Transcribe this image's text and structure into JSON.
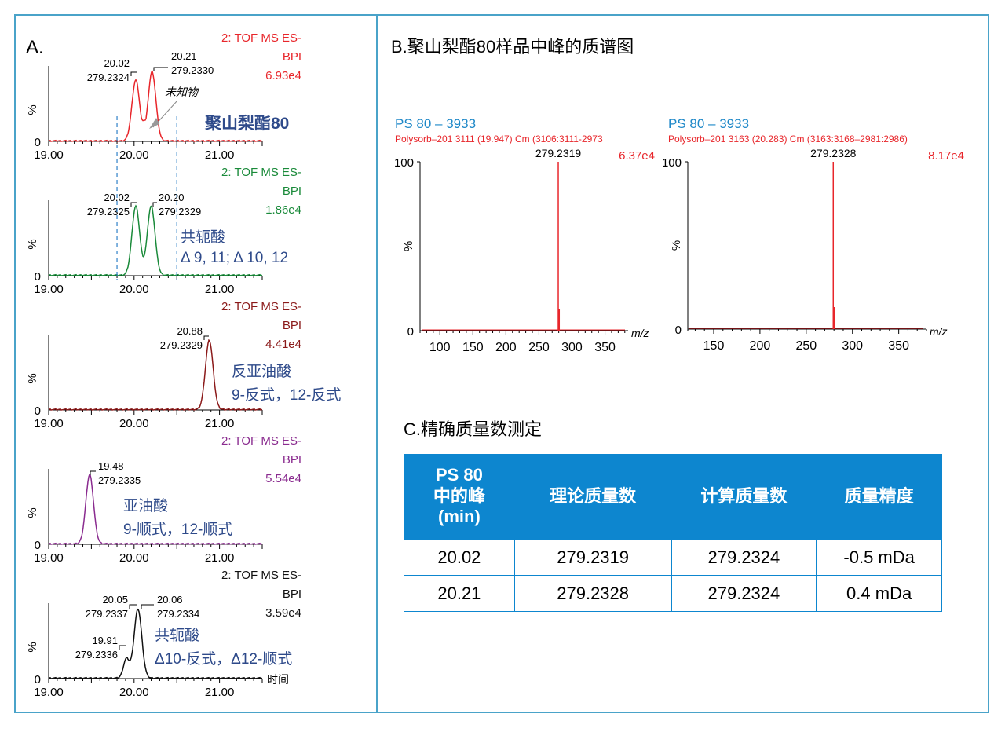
{
  "panel_a": {
    "label": "A.",
    "x_ticks": [
      "19.00",
      "20.00",
      "21.00"
    ],
    "y_label": "%",
    "y_zero": "0",
    "x_axis_title": "时间",
    "annotations": {
      "unknown": "未知物",
      "polysorbate": "聚山梨酯80"
    }
  },
  "panel_b": {
    "title": "B.聚山梨酯80样品中峰的质谱图"
  },
  "panel_c": {
    "title": "C.精确质量数测定",
    "headers": [
      "PS 80\n中的峰\n(min)",
      "理论质量数",
      "计算质量数",
      "质量精度"
    ],
    "rows": [
      [
        "20.02",
        "279.2319",
        "279.2324",
        "-0.5 mDa"
      ],
      [
        "20.21",
        "279.2328",
        "279.2324",
        "0.4 mDa"
      ]
    ]
  },
  "colors": {
    "frame": "#4aa3c9",
    "table_header": "#0d86cf",
    "annotation_blue": "#2e4a8a",
    "trace_red": "#e8262b",
    "trace_green": "#1a8a3a",
    "trace_darkred": "#8b1a1a",
    "trace_purple": "#8a2b8f",
    "trace_black": "#111111",
    "guide_blue": "#2f80c8"
  },
  "chart_data": [
    {
      "type": "line",
      "panel": "A1",
      "xlim": [
        19.0,
        21.5
      ],
      "ylim": [
        0,
        100
      ],
      "color": "#e8262b",
      "header": [
        "2: TOF MS ES-",
        "BPI",
        "6.93e4"
      ],
      "peaks": [
        {
          "rt": 20.02,
          "label1": "20.02",
          "label2": "279.2324",
          "height": 88
        },
        {
          "rt": 20.21,
          "label1": "20.21",
          "label2": "279.2330",
          "height": 100
        }
      ],
      "valley": {
        "rt": 20.12,
        "height": 30
      },
      "notes": [
        "未知物",
        "聚山梨酯80"
      ],
      "guides": [
        19.8,
        20.5
      ]
    },
    {
      "type": "line",
      "panel": "A2",
      "xlim": [
        19.0,
        21.5
      ],
      "ylim": [
        0,
        100
      ],
      "color": "#1a8a3a",
      "header": [
        "2: TOF MS ES-",
        "BPI",
        "1.86e4"
      ],
      "peaks": [
        {
          "rt": 20.02,
          "label1": "20.02",
          "label2": "279.2325",
          "height": 100
        },
        {
          "rt": 20.2,
          "label1": "20.20",
          "label2": "279.2329",
          "height": 100
        }
      ],
      "valley": {
        "rt": 20.11,
        "height": 15
      },
      "notes": [
        "共轭酸",
        "Δ 9, 11; Δ 10, 12"
      ],
      "guides": [
        19.8,
        20.5
      ]
    },
    {
      "type": "line",
      "panel": "A3",
      "xlim": [
        19.0,
        21.5
      ],
      "ylim": [
        0,
        100
      ],
      "color": "#8b1a1a",
      "header": [
        "2: TOF MS ES-",
        "BPI",
        "4.41e4"
      ],
      "peaks": [
        {
          "rt": 20.88,
          "label1": "20.88",
          "label2": "279.2329",
          "height": 100
        }
      ],
      "notes": [
        "反亚油酸",
        "9-反式，12-反式"
      ]
    },
    {
      "type": "line",
      "panel": "A4",
      "xlim": [
        19.0,
        21.5
      ],
      "ylim": [
        0,
        100
      ],
      "color": "#8a2b8f",
      "header": [
        "2: TOF MS ES-",
        "BPI",
        "5.54e4"
      ],
      "peaks": [
        {
          "rt": 19.48,
          "label1": "19.48",
          "label2": "279.2335",
          "height": 100
        }
      ],
      "notes": [
        "亚油酸",
        "9-顺式，12-顺式"
      ]
    },
    {
      "type": "line",
      "panel": "A5",
      "xlim": [
        19.0,
        21.5
      ],
      "ylim": [
        0,
        100
      ],
      "color": "#111111",
      "header": [
        "2: TOF MS ES-",
        "BPI",
        "3.59e4"
      ],
      "peaks": [
        {
          "rt": 19.91,
          "label1": "19.91",
          "label2": "279.2336",
          "height": 30
        },
        {
          "rt": 20.05,
          "label1": "20.05",
          "label2": "279.2337",
          "height": 100
        },
        {
          "rt": 20.06,
          "label1": "20.06",
          "label2": "279.2334",
          "height": 100
        }
      ],
      "notes": [
        "共轭酸",
        "Δ10-反式，Δ12-顺式"
      ]
    },
    {
      "type": "bar",
      "panel": "B1",
      "title_line": "PS 80 – 3933",
      "subtitle": "Polysorb–201 3111 (19.947) Cm (3106:3111-2973",
      "intensity": "6.37e4",
      "xlim": [
        70,
        385
      ],
      "ylim": [
        0,
        100
      ],
      "x_ticks": [
        100,
        150,
        200,
        250,
        300,
        350
      ],
      "xlabel": "m/z",
      "y_ticks": [
        "100",
        "%",
        "0"
      ],
      "peaks": [
        {
          "mz": 279.2319,
          "label": "279.2319",
          "value": 100
        }
      ]
    },
    {
      "type": "bar",
      "panel": "B2",
      "title_line": "PS 80 – 3933",
      "subtitle": "Polysorb–201 3163 (20.283) Cm (3163:3168–2981:2986)",
      "intensity": "8.17e4",
      "xlim": [
        122,
        380
      ],
      "ylim": [
        0,
        100
      ],
      "x_ticks": [
        150,
        200,
        250,
        300,
        350
      ],
      "xlabel": "m/z",
      "y_ticks": [
        "100",
        "%",
        "0"
      ],
      "peaks": [
        {
          "mz": 279.2328,
          "label": "279.2328",
          "value": 100
        }
      ]
    }
  ]
}
